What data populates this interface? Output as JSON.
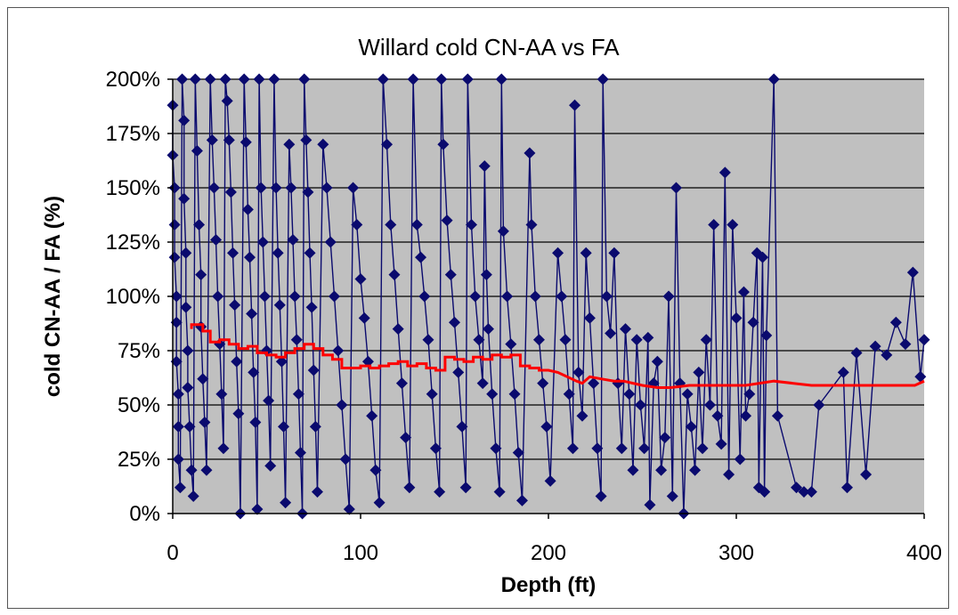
{
  "chart_data": {
    "type": "scatter",
    "title": "Willard cold CN-AA vs FA",
    "xlabel": "Depth (ft)",
    "ylabel": "cold CN-AA / FA (%)",
    "xlim": [
      0,
      400
    ],
    "ylim": [
      0,
      200
    ],
    "x_ticks": [
      "0",
      "100",
      "200",
      "300",
      "400"
    ],
    "y_ticks": [
      "0%",
      "25%",
      "50%",
      "75%",
      "100%",
      "125%",
      "150%",
      "175%",
      "200%"
    ],
    "grid": "horizontal",
    "legend": "none",
    "colors": {
      "plot_bg": "#c0c0c0",
      "marker": "#0a0a6e",
      "trend": "#ff0000",
      "frame": "#555555"
    },
    "series": [
      {
        "type": "scatter",
        "marker": "diamond",
        "connected": true,
        "points": [
          [
            0,
            188
          ],
          [
            0,
            165
          ],
          [
            1,
            150
          ],
          [
            1,
            133
          ],
          [
            1,
            118
          ],
          [
            2,
            100
          ],
          [
            2,
            88
          ],
          [
            2,
            70
          ],
          [
            3,
            55
          ],
          [
            3,
            40
          ],
          [
            3,
            25
          ],
          [
            4,
            12
          ],
          [
            5,
            200
          ],
          [
            6,
            181
          ],
          [
            6,
            145
          ],
          [
            7,
            120
          ],
          [
            7,
            95
          ],
          [
            8,
            75
          ],
          [
            8,
            58
          ],
          [
            9,
            40
          ],
          [
            10,
            20
          ],
          [
            11,
            8
          ],
          [
            12,
            200
          ],
          [
            13,
            167
          ],
          [
            14,
            133
          ],
          [
            15,
            110
          ],
          [
            15,
            86
          ],
          [
            16,
            62
          ],
          [
            17,
            42
          ],
          [
            18,
            20
          ],
          [
            20,
            200
          ],
          [
            21,
            172
          ],
          [
            22,
            150
          ],
          [
            23,
            126
          ],
          [
            24,
            100
          ],
          [
            25,
            78
          ],
          [
            26,
            55
          ],
          [
            27,
            30
          ],
          [
            28,
            200
          ],
          [
            29,
            190
          ],
          [
            30,
            172
          ],
          [
            31,
            148
          ],
          [
            32,
            120
          ],
          [
            33,
            96
          ],
          [
            34,
            70
          ],
          [
            35,
            46
          ],
          [
            36,
            0
          ],
          [
            38,
            200
          ],
          [
            39,
            171
          ],
          [
            40,
            140
          ],
          [
            41,
            118
          ],
          [
            42,
            92
          ],
          [
            43,
            65
          ],
          [
            44,
            42
          ],
          [
            45,
            2
          ],
          [
            46,
            200
          ],
          [
            47,
            150
          ],
          [
            48,
            125
          ],
          [
            49,
            100
          ],
          [
            50,
            75
          ],
          [
            51,
            52
          ],
          [
            52,
            22
          ],
          [
            54,
            200
          ],
          [
            55,
            150
          ],
          [
            56,
            120
          ],
          [
            57,
            96
          ],
          [
            58,
            70
          ],
          [
            59,
            40
          ],
          [
            60,
            5
          ],
          [
            62,
            170
          ],
          [
            63,
            150
          ],
          [
            64,
            126
          ],
          [
            65,
            100
          ],
          [
            66,
            80
          ],
          [
            67,
            55
          ],
          [
            68,
            28
          ],
          [
            69,
            0
          ],
          [
            70,
            200
          ],
          [
            71,
            172
          ],
          [
            72,
            148
          ],
          [
            73,
            120
          ],
          [
            74,
            95
          ],
          [
            75,
            66
          ],
          [
            76,
            40
          ],
          [
            77,
            10
          ],
          [
            80,
            170
          ],
          [
            82,
            150
          ],
          [
            84,
            125
          ],
          [
            86,
            100
          ],
          [
            88,
            75
          ],
          [
            90,
            50
          ],
          [
            92,
            25
          ],
          [
            94,
            2
          ],
          [
            96,
            150
          ],
          [
            98,
            133
          ],
          [
            100,
            108
          ],
          [
            102,
            90
          ],
          [
            104,
            70
          ],
          [
            106,
            45
          ],
          [
            108,
            20
          ],
          [
            110,
            5
          ],
          [
            112,
            200
          ],
          [
            114,
            170
          ],
          [
            116,
            133
          ],
          [
            118,
            110
          ],
          [
            120,
            85
          ],
          [
            122,
            60
          ],
          [
            124,
            35
          ],
          [
            126,
            12
          ],
          [
            128,
            200
          ],
          [
            130,
            133
          ],
          [
            132,
            118
          ],
          [
            134,
            100
          ],
          [
            136,
            80
          ],
          [
            138,
            55
          ],
          [
            140,
            30
          ],
          [
            142,
            10
          ],
          [
            143,
            200
          ],
          [
            144,
            170
          ],
          [
            146,
            135
          ],
          [
            148,
            110
          ],
          [
            150,
            88
          ],
          [
            152,
            65
          ],
          [
            154,
            40
          ],
          [
            156,
            12
          ],
          [
            157,
            200
          ],
          [
            159,
            133
          ],
          [
            161,
            100
          ],
          [
            163,
            80
          ],
          [
            165,
            60
          ],
          [
            166,
            160
          ],
          [
            167,
            110
          ],
          [
            168,
            85
          ],
          [
            170,
            55
          ],
          [
            172,
            30
          ],
          [
            174,
            10
          ],
          [
            175,
            200
          ],
          [
            176,
            130
          ],
          [
            178,
            100
          ],
          [
            180,
            78
          ],
          [
            182,
            55
          ],
          [
            184,
            28
          ],
          [
            186,
            6
          ],
          [
            190,
            166
          ],
          [
            191,
            133
          ],
          [
            193,
            100
          ],
          [
            195,
            80
          ],
          [
            197,
            60
          ],
          [
            199,
            40
          ],
          [
            201,
            15
          ],
          [
            205,
            120
          ],
          [
            207,
            100
          ],
          [
            209,
            80
          ],
          [
            211,
            55
          ],
          [
            213,
            30
          ],
          [
            214,
            188
          ],
          [
            216,
            65
          ],
          [
            218,
            45
          ],
          [
            220,
            120
          ],
          [
            222,
            90
          ],
          [
            224,
            60
          ],
          [
            226,
            30
          ],
          [
            228,
            8
          ],
          [
            229,
            200
          ],
          [
            231,
            100
          ],
          [
            233,
            83
          ],
          [
            235,
            120
          ],
          [
            237,
            60
          ],
          [
            239,
            30
          ],
          [
            241,
            85
          ],
          [
            243,
            55
          ],
          [
            245,
            20
          ],
          [
            247,
            80
          ],
          [
            249,
            50
          ],
          [
            251,
            30
          ],
          [
            253,
            81
          ],
          [
            254,
            4
          ],
          [
            256,
            60
          ],
          [
            258,
            70
          ],
          [
            260,
            20
          ],
          [
            262,
            35
          ],
          [
            264,
            100
          ],
          [
            266,
            8
          ],
          [
            268,
            150
          ],
          [
            270,
            60
          ],
          [
            272,
            0
          ],
          [
            274,
            55
          ],
          [
            276,
            40
          ],
          [
            278,
            20
          ],
          [
            280,
            65
          ],
          [
            282,
            30
          ],
          [
            284,
            80
          ],
          [
            286,
            50
          ],
          [
            288,
            133
          ],
          [
            290,
            45
          ],
          [
            292,
            32
          ],
          [
            294,
            157
          ],
          [
            296,
            18
          ],
          [
            298,
            133
          ],
          [
            300,
            90
          ],
          [
            302,
            25
          ],
          [
            304,
            102
          ],
          [
            305,
            45
          ],
          [
            307,
            55
          ],
          [
            309,
            88
          ],
          [
            311,
            120
          ],
          [
            312,
            12
          ],
          [
            314,
            118
          ],
          [
            315,
            10
          ],
          [
            316,
            82
          ],
          [
            320,
            200
          ],
          [
            322,
            45
          ],
          [
            332,
            12
          ],
          [
            336,
            10
          ],
          [
            340,
            10
          ],
          [
            344,
            50
          ],
          [
            357,
            65
          ],
          [
            359,
            12
          ],
          [
            364,
            74
          ],
          [
            369,
            18
          ],
          [
            374,
            77
          ],
          [
            380,
            73
          ],
          [
            385,
            88
          ],
          [
            390,
            78
          ],
          [
            394,
            111
          ],
          [
            398,
            63
          ],
          [
            400,
            80
          ]
        ]
      },
      {
        "type": "line",
        "step": true,
        "points": [
          [
            10,
            85
          ],
          [
            10,
            87
          ],
          [
            16,
            87
          ],
          [
            16,
            84
          ],
          [
            20,
            84
          ],
          [
            20,
            79
          ],
          [
            25,
            79
          ],
          [
            25,
            80
          ],
          [
            30,
            80
          ],
          [
            30,
            78
          ],
          [
            35,
            78
          ],
          [
            35,
            76
          ],
          [
            40,
            76
          ],
          [
            40,
            77
          ],
          [
            45,
            77
          ],
          [
            45,
            74
          ],
          [
            50,
            74
          ],
          [
            50,
            73
          ],
          [
            55,
            73
          ],
          [
            55,
            72
          ],
          [
            60,
            72
          ],
          [
            60,
            74
          ],
          [
            65,
            74
          ],
          [
            65,
            76
          ],
          [
            70,
            76
          ],
          [
            70,
            78
          ],
          [
            75,
            78
          ],
          [
            75,
            76
          ],
          [
            80,
            76
          ],
          [
            80,
            73
          ],
          [
            85,
            73
          ],
          [
            85,
            71
          ],
          [
            90,
            71
          ],
          [
            90,
            67
          ],
          [
            100,
            67
          ],
          [
            100,
            68
          ],
          [
            105,
            68
          ],
          [
            105,
            67
          ],
          [
            110,
            67
          ],
          [
            110,
            68
          ],
          [
            115,
            68
          ],
          [
            115,
            69
          ],
          [
            120,
            69
          ],
          [
            120,
            70
          ],
          [
            125,
            70
          ],
          [
            125,
            68
          ],
          [
            130,
            68
          ],
          [
            130,
            69
          ],
          [
            135,
            69
          ],
          [
            135,
            67
          ],
          [
            140,
            67
          ],
          [
            140,
            66
          ],
          [
            145,
            66
          ],
          [
            145,
            72
          ],
          [
            150,
            72
          ],
          [
            150,
            71
          ],
          [
            155,
            71
          ],
          [
            155,
            70
          ],
          [
            160,
            70
          ],
          [
            160,
            72
          ],
          [
            165,
            72
          ],
          [
            165,
            71
          ],
          [
            170,
            71
          ],
          [
            170,
            73
          ],
          [
            175,
            73
          ],
          [
            175,
            72
          ],
          [
            180,
            72
          ],
          [
            180,
            73
          ],
          [
            185,
            73
          ],
          [
            185,
            68
          ],
          [
            190,
            68
          ],
          [
            190,
            67
          ],
          [
            195,
            67
          ],
          [
            195,
            66
          ],
          [
            200,
            66
          ],
          [
            205,
            65
          ],
          [
            210,
            63
          ],
          [
            215,
            61
          ],
          [
            218,
            60
          ],
          [
            222,
            63
          ],
          [
            228,
            62
          ],
          [
            235,
            61
          ],
          [
            240,
            61
          ],
          [
            245,
            60
          ],
          [
            250,
            59
          ],
          [
            258,
            58
          ],
          [
            265,
            58
          ],
          [
            275,
            59
          ],
          [
            290,
            59
          ],
          [
            305,
            59
          ],
          [
            320,
            61
          ],
          [
            340,
            59
          ],
          [
            360,
            59
          ],
          [
            380,
            59
          ],
          [
            395,
            59
          ],
          [
            400,
            61
          ]
        ]
      }
    ]
  }
}
